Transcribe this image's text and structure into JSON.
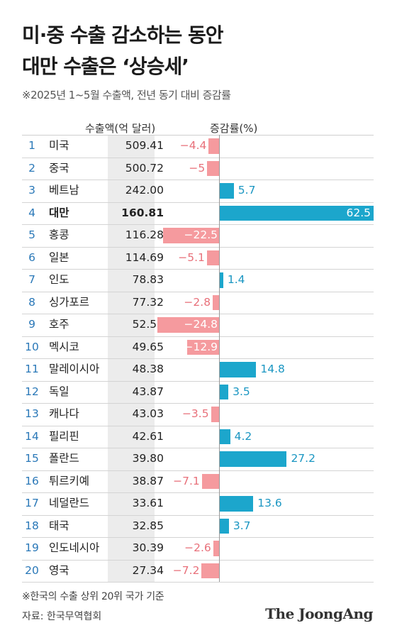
{
  "header": {
    "title_line1": "미·중 수출 감소하는 동안",
    "title_line2": "대만 수출은 ‘상승세’",
    "subtitle": "※2025년 1~5월 수출액, 전년 동기 대비 증감률"
  },
  "chart_data": {
    "type": "bar",
    "columns": {
      "value": "수출액(억 달러)",
      "change": "증감률(%)"
    },
    "highlight": "대만",
    "rows": [
      {
        "rank": "1",
        "country": "미국",
        "value": "509.41",
        "change": -4.4,
        "label": "−4.4"
      },
      {
        "rank": "2",
        "country": "중국",
        "value": "500.72",
        "change": -5,
        "label": "−5"
      },
      {
        "rank": "3",
        "country": "베트남",
        "value": "242.00",
        "change": 5.7,
        "label": "5.7"
      },
      {
        "rank": "4",
        "country": "대만",
        "value": "160.81",
        "change": 62.5,
        "label": "62.5"
      },
      {
        "rank": "5",
        "country": "홍콩",
        "value": "116.28",
        "change": -22.5,
        "label": "−22.5"
      },
      {
        "rank": "6",
        "country": "일본",
        "value": "114.69",
        "change": -5.1,
        "label": "−5.1"
      },
      {
        "rank": "7",
        "country": "인도",
        "value": "78.83",
        "change": 1.4,
        "label": "1.4"
      },
      {
        "rank": "8",
        "country": "싱가포르",
        "value": "77.32",
        "change": -2.8,
        "label": "−2.8"
      },
      {
        "rank": "9",
        "country": "호주",
        "value": "52.52",
        "change": -24.8,
        "label": "−24.8"
      },
      {
        "rank": "10",
        "country": "멕시코",
        "value": "49.65",
        "change": -12.9,
        "label": "−12.9"
      },
      {
        "rank": "11",
        "country": "말레이시아",
        "value": "48.38",
        "change": 14.8,
        "label": "14.8"
      },
      {
        "rank": "12",
        "country": "독일",
        "value": "43.87",
        "change": 3.5,
        "label": "3.5"
      },
      {
        "rank": "13",
        "country": "캐나다",
        "value": "43.03",
        "change": -3.5,
        "label": "−3.5"
      },
      {
        "rank": "14",
        "country": "필리핀",
        "value": "42.61",
        "change": 4.2,
        "label": "4.2"
      },
      {
        "rank": "15",
        "country": "폴란드",
        "value": "39.80",
        "change": 27.2,
        "label": "27.2"
      },
      {
        "rank": "16",
        "country": "튀르키예",
        "value": "38.87",
        "change": -7.1,
        "label": "−7.1"
      },
      {
        "rank": "17",
        "country": "네덜란드",
        "value": "33.61",
        "change": 13.6,
        "label": "13.6"
      },
      {
        "rank": "18",
        "country": "태국",
        "value": "32.85",
        "change": 3.7,
        "label": "3.7"
      },
      {
        "rank": "19",
        "country": "인도네시아",
        "value": "30.39",
        "change": -2.6,
        "label": "−2.6"
      },
      {
        "rank": "20",
        "country": "영국",
        "value": "27.34",
        "change": -7.2,
        "label": "−7.2"
      }
    ],
    "colors": {
      "negative": "#f59a9e",
      "positive": "#1ca6cc",
      "rank": "#2a78b8"
    }
  },
  "footer": {
    "note": "※한국의 수출 상위 20위 국가 기준",
    "source": "자료: 한국무역협회",
    "logo": "The JoongAng"
  }
}
